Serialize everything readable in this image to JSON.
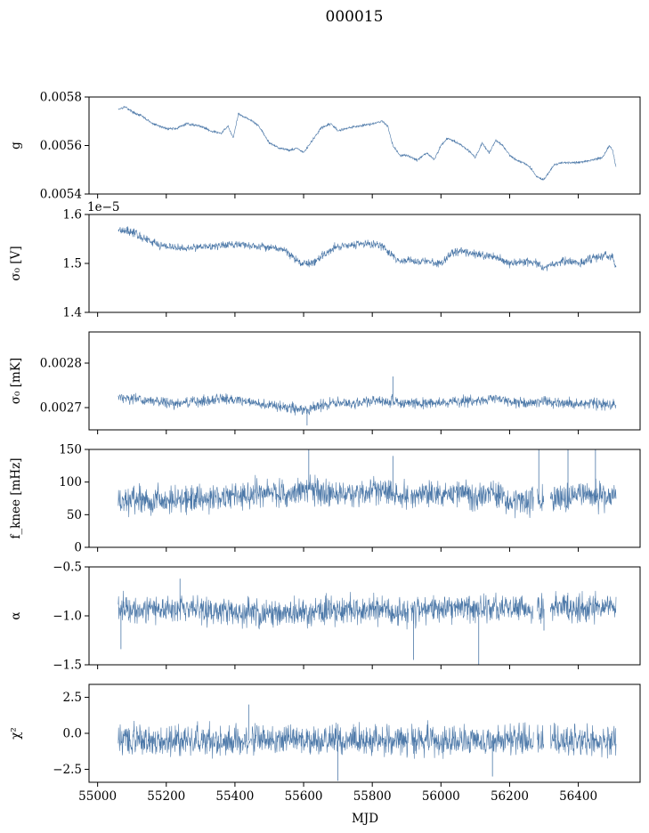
{
  "figure": {
    "title": "000015",
    "xlabel": "MJD"
  },
  "colors": {
    "series": "#4c78a8",
    "axes": "#000000",
    "background": "#ffffff"
  },
  "chart_data": [
    {
      "type": "line",
      "ylabel": "g",
      "offset_text": "",
      "xlim": [
        54975,
        56580
      ],
      "ylim": [
        0.0054,
        0.0058
      ],
      "yticks": [
        0.0054,
        0.0056,
        0.0058
      ],
      "ytick_labels": [
        "0.0054",
        "0.0056",
        "0.0058"
      ],
      "xticks": [
        55000,
        55200,
        55400,
        55600,
        55800,
        56000,
        56200,
        56400
      ],
      "x_range": [
        55060,
        56510
      ],
      "noise": 3.5e-06,
      "gaps": [],
      "spikes": [],
      "profile": {
        "x": [
          55060,
          55080,
          55100,
          55130,
          55160,
          55200,
          55230,
          55260,
          55300,
          55330,
          55360,
          55380,
          55395,
          55410,
          55440,
          55470,
          55500,
          55530,
          55560,
          55580,
          55600,
          55630,
          55650,
          55680,
          55700,
          55720,
          55760,
          55800,
          55830,
          55845,
          55860,
          55880,
          55900,
          55930,
          55960,
          55980,
          56000,
          56020,
          56050,
          56080,
          56100,
          56120,
          56140,
          56160,
          56180,
          56200,
          56220,
          56240,
          56260,
          56280,
          56300,
          56330,
          56360,
          56400,
          56440,
          56470,
          56490,
          56500,
          56510
        ],
        "y": [
          0.00575,
          0.00576,
          0.00574,
          0.00572,
          0.00569,
          0.00567,
          0.00567,
          0.00569,
          0.00568,
          0.00566,
          0.00565,
          0.00568,
          0.00563,
          0.00573,
          0.00571,
          0.00568,
          0.00561,
          0.00559,
          0.00558,
          0.00559,
          0.00557,
          0.00563,
          0.00567,
          0.00569,
          0.00566,
          0.00567,
          0.00568,
          0.00569,
          0.0057,
          0.00568,
          0.0056,
          0.00556,
          0.00556,
          0.00554,
          0.00557,
          0.00554,
          0.0056,
          0.00563,
          0.00561,
          0.00558,
          0.00555,
          0.00561,
          0.00557,
          0.00562,
          0.0056,
          0.00556,
          0.00554,
          0.00553,
          0.00551,
          0.00547,
          0.00546,
          0.00552,
          0.00553,
          0.00553,
          0.00554,
          0.00555,
          0.0056,
          0.00558,
          0.00551
        ]
      }
    },
    {
      "type": "line",
      "ylabel": "σ₀ [V]",
      "offset_text": "1e−5",
      "xlim": [
        54975,
        56580
      ],
      "ylim": [
        1.4,
        1.6
      ],
      "yticks": [
        1.4,
        1.5,
        1.6
      ],
      "ytick_labels": [
        "1.4",
        "1.5",
        "1.6"
      ],
      "xticks": [
        55000,
        55200,
        55400,
        55600,
        55800,
        56000,
        56200,
        56400
      ],
      "x_range": [
        55060,
        56510
      ],
      "noise": 0.006,
      "gaps": [],
      "spikes": [],
      "profile": {
        "x": [
          55060,
          55100,
          55150,
          55200,
          55250,
          55300,
          55350,
          55400,
          55450,
          55500,
          55550,
          55580,
          55600,
          55630,
          55660,
          55700,
          55750,
          55800,
          55830,
          55850,
          55880,
          55900,
          55950,
          56000,
          56030,
          56060,
          56100,
          56150,
          56200,
          56250,
          56280,
          56300,
          56330,
          56360,
          56400,
          56440,
          56470,
          56500,
          56510
        ],
        "y": [
          1.57,
          1.565,
          1.545,
          1.535,
          1.53,
          1.535,
          1.535,
          1.54,
          1.535,
          1.535,
          1.525,
          1.505,
          1.5,
          1.5,
          1.52,
          1.535,
          1.54,
          1.54,
          1.535,
          1.52,
          1.505,
          1.505,
          1.505,
          1.5,
          1.52,
          1.525,
          1.52,
          1.515,
          1.5,
          1.505,
          1.5,
          1.49,
          1.5,
          1.505,
          1.5,
          1.51,
          1.515,
          1.515,
          1.49
        ]
      }
    },
    {
      "type": "line",
      "ylabel": "σ₀ [mK]",
      "offset_text": "",
      "xlim": [
        54975,
        56580
      ],
      "ylim": [
        0.00265,
        0.00287
      ],
      "yticks": [
        0.0027,
        0.0028
      ],
      "ytick_labels": [
        "0.0027",
        "0.0028"
      ],
      "xticks": [
        55000,
        55200,
        55400,
        55600,
        55800,
        56000,
        56200,
        56400
      ],
      "x_range": [
        55060,
        56510
      ],
      "noise": 8.5e-06,
      "gaps": [],
      "spikes": [
        [
          55860,
          0.00277
        ],
        [
          55610,
          0.00266
        ]
      ],
      "profile": {
        "x": [
          55060,
          55100,
          55150,
          55200,
          55250,
          55300,
          55350,
          55400,
          55450,
          55500,
          55550,
          55600,
          55650,
          55700,
          55750,
          55800,
          55850,
          55900,
          55950,
          56000,
          56050,
          56100,
          56150,
          56200,
          56250,
          56300,
          56350,
          56400,
          56450,
          56510
        ],
        "y": [
          0.002725,
          0.00272,
          0.002715,
          0.00271,
          0.00271,
          0.002715,
          0.00272,
          0.00272,
          0.00271,
          0.002705,
          0.0027,
          0.002695,
          0.002705,
          0.00271,
          0.00271,
          0.002715,
          0.002715,
          0.00271,
          0.00271,
          0.00271,
          0.002715,
          0.002715,
          0.00272,
          0.002715,
          0.00271,
          0.002715,
          0.00271,
          0.00271,
          0.00271,
          0.002705
        ]
      }
    },
    {
      "type": "line",
      "ylabel": "f_knee [mHz]",
      "offset_text": "",
      "xlim": [
        54975,
        56580
      ],
      "ylim": [
        0,
        150
      ],
      "yticks": [
        0,
        50,
        100,
        150
      ],
      "ytick_labels": [
        "0",
        "50",
        "100",
        "150"
      ],
      "xticks": [
        55000,
        55200,
        55400,
        55600,
        55800,
        56000,
        56200,
        56400
      ],
      "x_range": [
        55060,
        56510
      ],
      "noise": 15,
      "gaps": [
        [
          55905,
          55912
        ],
        [
          56270,
          56280
        ],
        [
          56300,
          56318
        ]
      ],
      "spikes": [
        [
          55615,
          150
        ],
        [
          55860,
          140
        ],
        [
          56285,
          150
        ],
        [
          56370,
          150
        ],
        [
          56450,
          150
        ]
      ],
      "profile": {
        "x": [
          55060,
          55150,
          55250,
          55350,
          55400,
          55450,
          55500,
          55550,
          55600,
          55650,
          55700,
          55750,
          55800,
          55850,
          55900,
          55950,
          56000,
          56050,
          56100,
          56150,
          56200,
          56250,
          56280,
          56300,
          56350,
          56400,
          56450,
          56510
        ],
        "y": [
          70,
          72,
          75,
          76,
          80,
          82,
          83,
          82,
          90,
          85,
          84,
          82,
          86,
          85,
          80,
          83,
          82,
          84,
          82,
          80,
          72,
          68,
          75,
          70,
          78,
          80,
          80,
          78
        ]
      }
    },
    {
      "type": "line",
      "ylabel": "α",
      "offset_text": "",
      "xlim": [
        54975,
        56580
      ],
      "ylim": [
        -1.5,
        -0.5
      ],
      "yticks": [
        -1.5,
        -1.0,
        -0.5
      ],
      "ytick_labels": [
        "−1.5",
        "−1.0",
        "−0.5"
      ],
      "xticks": [
        55000,
        55200,
        55400,
        55600,
        55800,
        56000,
        56200,
        56400
      ],
      "x_range": [
        55060,
        56510
      ],
      "noise": 0.1,
      "gaps": [
        [
          55905,
          55912
        ],
        [
          56270,
          56280
        ],
        [
          56300,
          56318
        ]
      ],
      "spikes": [
        [
          55068,
          -1.34
        ],
        [
          55240,
          -0.62
        ],
        [
          55920,
          -1.45
        ],
        [
          56110,
          -1.5
        ],
        [
          56300,
          -1.15
        ]
      ],
      "profile": {
        "x": [
          55060,
          55150,
          55250,
          55350,
          55450,
          55550,
          55650,
          55750,
          55850,
          55900,
          55950,
          56050,
          56150,
          56250,
          56300,
          56350,
          56450,
          56510
        ],
        "y": [
          -0.92,
          -0.92,
          -0.93,
          -0.95,
          -0.97,
          -0.98,
          -0.95,
          -0.94,
          -0.96,
          -0.95,
          -0.93,
          -0.92,
          -0.91,
          -0.95,
          -0.93,
          -0.92,
          -0.92,
          -0.92
        ]
      }
    },
    {
      "type": "line",
      "ylabel": "χ²",
      "offset_text": "",
      "xlim": [
        54975,
        56580
      ],
      "ylim": [
        -3.4,
        3.4
      ],
      "yticks": [
        -2.5,
        0.0,
        2.5
      ],
      "ytick_labels": [
        "−2.5",
        "0.0",
        "2.5"
      ],
      "xticks": [
        55000,
        55200,
        55400,
        55600,
        55800,
        56000,
        56200,
        56400
      ],
      "xtick_labels": [
        "55000",
        "55200",
        "55400",
        "55600",
        "55800",
        "56000",
        "56200",
        "56400"
      ],
      "x_range": [
        55060,
        56510
      ],
      "noise": 0.75,
      "gaps": [
        [
          55905,
          55912
        ],
        [
          56270,
          56280
        ],
        [
          56300,
          56318
        ]
      ],
      "spikes": [
        [
          55440,
          2.0
        ],
        [
          55700,
          -3.3
        ],
        [
          56150,
          -3.0
        ]
      ],
      "profile": {
        "x": [
          55060,
          55300,
          55600,
          55900,
          56200,
          56510
        ],
        "y": [
          -0.5,
          -0.5,
          -0.5,
          -0.5,
          -0.5,
          -0.5
        ]
      }
    }
  ]
}
